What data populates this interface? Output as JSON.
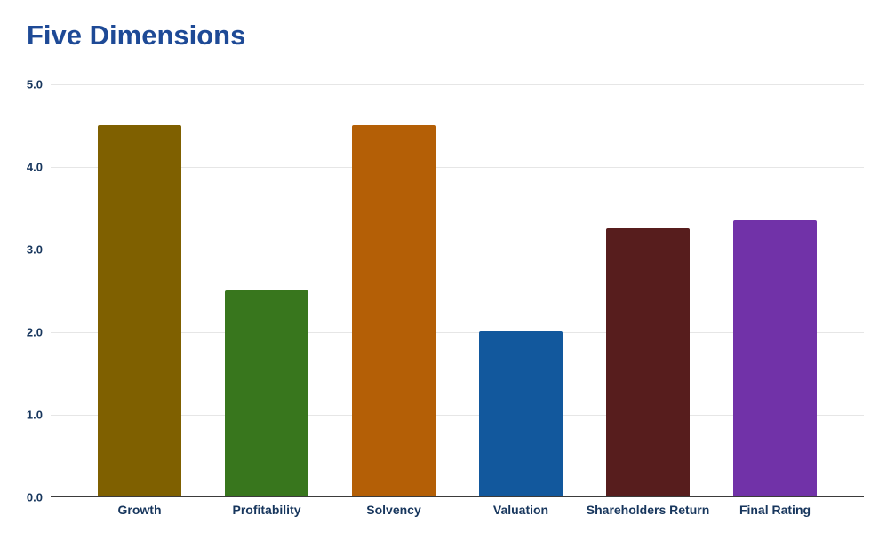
{
  "title": "Five Dimensions",
  "chart_data": {
    "type": "bar",
    "title": "Five Dimensions",
    "categories": [
      "Growth",
      "Profitability",
      "Solvency",
      "Valuation",
      "Shareholders Return",
      "Final Rating"
    ],
    "values": [
      4.5,
      2.5,
      4.5,
      2.0,
      3.25,
      3.35
    ],
    "bar_colors": [
      "#7f6000",
      "#38761d",
      "#b45f06",
      "#12589d",
      "#571d1d",
      "#7132a8"
    ],
    "xlabel": "",
    "ylabel": "",
    "ylim": [
      0,
      5
    ],
    "ytick_labels": [
      "5.0",
      "4.0",
      "3.0",
      "2.0",
      "1.0",
      "0.0"
    ],
    "ytick_values": [
      5,
      4,
      3,
      2,
      1,
      0
    ],
    "grid": true,
    "legend": false
  },
  "colors": {
    "title_text": "#1e4a96",
    "axis_text": "#17365d",
    "gridline": "#e6e6e6",
    "axis_line": "#3b3b3b",
    "background": "#ffffff"
  }
}
